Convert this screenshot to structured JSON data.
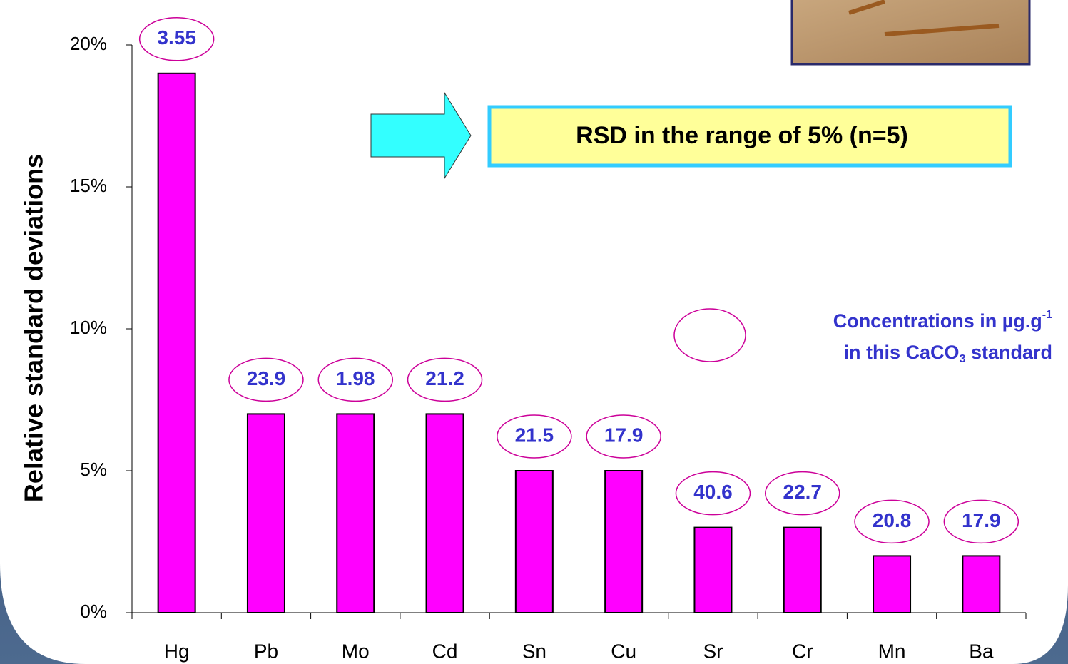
{
  "chart_data": {
    "type": "bar",
    "y_axis_label": "Relative standard deviations",
    "categories": [
      "Hg",
      "Pb",
      "Mo",
      "Cd",
      "Sn",
      "Cu",
      "Sr",
      "Cr",
      "Mn",
      "Ba"
    ],
    "values": [
      19,
      7,
      7,
      7,
      5,
      5,
      3,
      3,
      2,
      2
    ],
    "color": "#ff00ff",
    "ylim": [
      0,
      20
    ],
    "yticks": [
      {
        "value": 0,
        "label": "0%"
      },
      {
        "value": 5,
        "label": "5%"
      },
      {
        "value": 10,
        "label": "10%"
      },
      {
        "value": 15,
        "label": "15%"
      },
      {
        "value": 20,
        "label": "20%"
      }
    ],
    "concentrations": [
      3.55,
      23.9,
      1.98,
      21.2,
      21.5,
      17.9,
      40.6,
      22.7,
      20.8,
      17.9
    ],
    "callout": "RSD in the range of 5% (n=5)",
    "legend": {
      "line1": "Concentrations in µg.g",
      "line1_sup": "-1",
      "line2": "in this CaCO",
      "line2_sub": "3",
      "line2_end": " standard"
    }
  }
}
